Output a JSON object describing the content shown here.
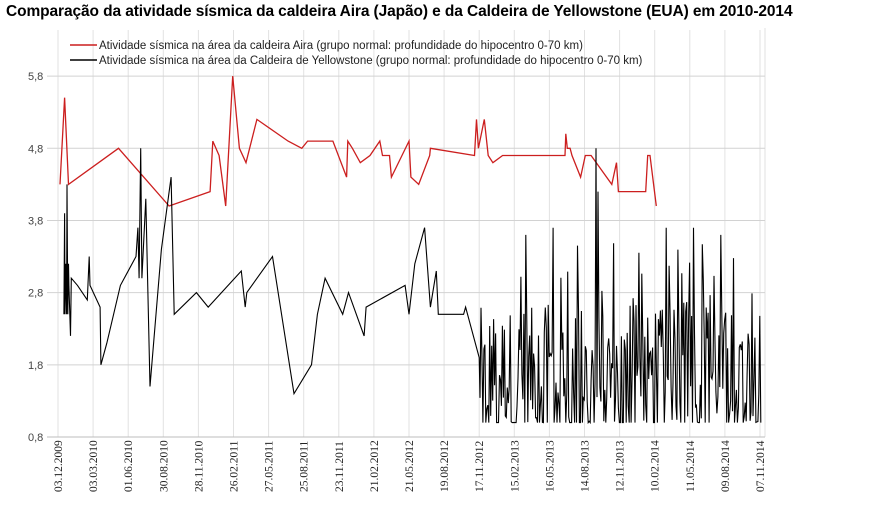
{
  "chart_data": {
    "type": "line",
    "title": "Comparação da atividade sísmica da caldeira Aira (Japão) e da Caldeira de Yellowstone (EUA) em 2010-2014",
    "xlabel": "",
    "ylabel": "",
    "ylim": [
      0.8,
      6.3
    ],
    "yticks": [
      0.8,
      1.8,
      2.8,
      3.8,
      4.8,
      5.8
    ],
    "ytick_labels": [
      "0,8",
      "1,8",
      "2,8",
      "3,8",
      "4,8",
      "5,8"
    ],
    "xlim": [
      0,
      1800
    ],
    "xticks": [
      {
        "label": "03.12.2009",
        "x": 0
      },
      {
        "label": "03.03.2010",
        "x": 90
      },
      {
        "label": "01.06.2010",
        "x": 180
      },
      {
        "label": "30.08.2010",
        "x": 270
      },
      {
        "label": "28.11.2010",
        "x": 360
      },
      {
        "label": "26.02.2011",
        "x": 450
      },
      {
        "label": "27.05.2011",
        "x": 540
      },
      {
        "label": "25.08.2011",
        "x": 630
      },
      {
        "label": "23.11.2011",
        "x": 720
      },
      {
        "label": "21.02.2012",
        "x": 810
      },
      {
        "label": "21.05.2012",
        "x": 900
      },
      {
        "label": "19.08.2012",
        "x": 990
      },
      {
        "label": "17.11.2012",
        "x": 1080
      },
      {
        "label": "15.02.2013",
        "x": 1170
      },
      {
        "label": "16.05.2013",
        "x": 1260
      },
      {
        "label": "14.08.2013",
        "x": 1350
      },
      {
        "label": "12.11.2013",
        "x": 1440
      },
      {
        "label": "10.02.2014",
        "x": 1530
      },
      {
        "label": "11.05.2014",
        "x": 1620
      },
      {
        "label": "09.08.2014",
        "x": 1710
      },
      {
        "label": "07.11.2014",
        "x": 1800
      }
    ],
    "grid": true,
    "legend_position": "top",
    "series": [
      {
        "name": "Atividade sísmica na área da caldeira Aira (grupo normal: profundidade do hipocentro 0-70 km)",
        "color": "#cc1f1f",
        "points": [
          [
            5,
            4.3
          ],
          [
            17,
            5.5
          ],
          [
            27,
            4.3
          ],
          [
            155,
            4.8
          ],
          [
            285,
            4.0
          ],
          [
            390,
            4.2
          ],
          [
            397,
            4.9
          ],
          [
            413,
            4.7
          ],
          [
            430,
            4.0
          ],
          [
            448,
            5.8
          ],
          [
            465,
            4.8
          ],
          [
            482,
            4.6
          ],
          [
            510,
            5.2
          ],
          [
            590,
            4.9
          ],
          [
            625,
            4.8
          ],
          [
            640,
            4.9
          ],
          [
            705,
            4.9
          ],
          [
            740,
            4.4
          ],
          [
            743,
            4.9
          ],
          [
            755,
            4.8
          ],
          [
            775,
            4.6
          ],
          [
            800,
            4.7
          ],
          [
            825,
            4.9
          ],
          [
            832,
            4.7
          ],
          [
            850,
            4.7
          ],
          [
            855,
            4.4
          ],
          [
            900,
            4.9
          ],
          [
            905,
            4.4
          ],
          [
            925,
            4.3
          ],
          [
            953,
            4.7
          ],
          [
            955,
            4.8
          ],
          [
            1068,
            4.7
          ],
          [
            1073,
            5.2
          ],
          [
            1078,
            4.8
          ],
          [
            1093,
            5.2
          ],
          [
            1103,
            4.7
          ],
          [
            1115,
            4.6
          ],
          [
            1140,
            4.7
          ],
          [
            1300,
            4.7
          ],
          [
            1302,
            5.0
          ],
          [
            1306,
            4.8
          ],
          [
            1313,
            4.8
          ],
          [
            1318,
            4.7
          ],
          [
            1340,
            4.4
          ],
          [
            1352,
            4.7
          ],
          [
            1367,
            4.7
          ],
          [
            1420,
            4.3
          ],
          [
            1432,
            4.6
          ],
          [
            1437,
            4.2
          ],
          [
            1507,
            4.2
          ],
          [
            1512,
            4.7
          ],
          [
            1518,
            4.7
          ],
          [
            1534,
            4.0
          ]
        ]
      },
      {
        "name": "Atividade sísmica na área da Caldeira de Yellowstone (grupo normal: profundidade do hipocentro 0-70 km)",
        "color": "#000000",
        "points": [
          [
            15,
            2.5
          ],
          [
            17,
            3.9
          ],
          [
            18,
            2.5
          ],
          [
            20,
            3.2
          ],
          [
            22,
            2.5
          ],
          [
            23,
            4.3
          ],
          [
            25,
            2.5
          ],
          [
            27,
            3.2
          ],
          [
            28,
            2.9
          ],
          [
            32,
            2.2
          ],
          [
            34,
            3.0
          ],
          [
            50,
            2.9
          ],
          [
            75,
            2.7
          ],
          [
            80,
            3.3
          ],
          [
            82,
            2.9
          ],
          [
            108,
            2.6
          ],
          [
            110,
            1.8
          ],
          [
            125,
            2.1
          ],
          [
            160,
            2.9
          ],
          [
            200,
            3.3
          ],
          [
            205,
            3.7
          ],
          [
            208,
            3.0
          ],
          [
            212,
            4.8
          ],
          [
            215,
            3.0
          ],
          [
            225,
            4.1
          ],
          [
            236,
            1.5
          ],
          [
            265,
            3.4
          ],
          [
            290,
            4.4
          ],
          [
            298,
            2.5
          ],
          [
            355,
            2.8
          ],
          [
            385,
            2.6
          ],
          [
            470,
            3.1
          ],
          [
            480,
            2.6
          ],
          [
            484,
            2.8
          ],
          [
            550,
            3.3
          ],
          [
            605,
            1.4
          ],
          [
            650,
            1.8
          ],
          [
            665,
            2.5
          ],
          [
            685,
            3.0
          ],
          [
            730,
            2.5
          ],
          [
            745,
            2.8
          ],
          [
            785,
            2.2
          ],
          [
            790,
            2.6
          ],
          [
            890,
            2.9
          ],
          [
            900,
            2.5
          ],
          [
            915,
            3.2
          ],
          [
            940,
            3.7
          ],
          [
            955,
            2.6
          ],
          [
            970,
            3.1
          ],
          [
            975,
            2.5
          ],
          [
            1005,
            2.5
          ],
          [
            1018,
            2.5
          ],
          [
            1040,
            2.5
          ],
          [
            1045,
            2.6
          ],
          [
            1080,
            1.9
          ]
        ],
        "noisy_segment": {
          "x_start": 1082,
          "x_end": 1803,
          "y_min": 1.0,
          "y_max": 3.8,
          "spikes": [
            [
              1380,
              4.8
            ],
            [
              1385,
              4.2
            ],
            [
              1200,
              3.6
            ],
            [
              1270,
              3.7
            ],
            [
              1560,
              3.7
            ],
            [
              1630,
              3.7
            ],
            [
              1700,
              3.6
            ]
          ]
        }
      }
    ]
  }
}
